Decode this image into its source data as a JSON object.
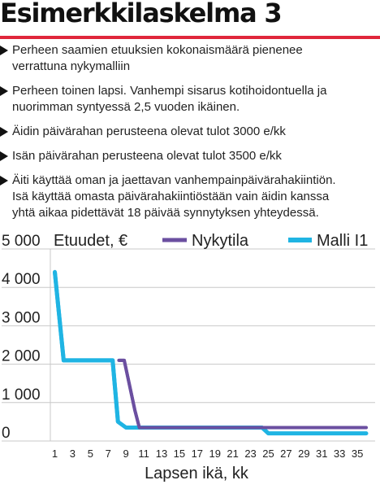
{
  "title": "Esimerkkilaskelma 3",
  "accent_color": "#e0263b",
  "bullets": [
    "Perheen saamien etuuksien kokonaismäärä pienenee\nverrattuna nykymalliin",
    "Perheen toinen lapsi. Vanhempi sisarus kotihoidontuella ja\nnuorimman syntyessä 2,5 vuoden ikäinen.",
    "Äidin päivärahan perusteena olevat tulot 3000 e/kk",
    "Isän päivärahan perusteena olevat tulot 3500 e/kk",
    "Äiti käyttää oman ja jaettavan vanhempainpäivärahakiintiön.\nIsä käyttää omasta päivärahakiintiöstään vain äidin kanssa\nyhtä aikaa pidettävät 18 päivää synnytyksen yhteydessä."
  ],
  "chart_data": {
    "type": "line",
    "ylabel": "Etuudet, €",
    "xlabel": "Lapsen ikä, kk",
    "xlim": [
      0.5,
      37
    ],
    "ylim": [
      0,
      5000
    ],
    "yticks": [
      0,
      1000,
      2000,
      3000,
      4000,
      5000
    ],
    "ytick_labels": [
      "0",
      "1 000",
      "2 000",
      "3 000",
      "4 000",
      "5 000"
    ],
    "xticks": [
      1,
      3,
      5,
      7,
      9,
      11,
      13,
      15,
      17,
      19,
      21,
      23,
      25,
      27,
      29,
      31,
      33,
      35
    ],
    "grid": true,
    "legend_position": "top",
    "series": [
      {
        "name": "Nykytila",
        "color": "#6b4fa0",
        "x": [
          8.2,
          8.8,
          10,
          10.5,
          36
        ],
        "y": [
          2100,
          2100,
          800,
          350,
          350
        ]
      },
      {
        "name": "Malli I1",
        "color": "#1fb4e3",
        "x": [
          1,
          2,
          7.5,
          8.1,
          9,
          24.3,
          25,
          36
        ],
        "y": [
          4400,
          2100,
          2100,
          500,
          350,
          350,
          200,
          200
        ]
      }
    ]
  }
}
